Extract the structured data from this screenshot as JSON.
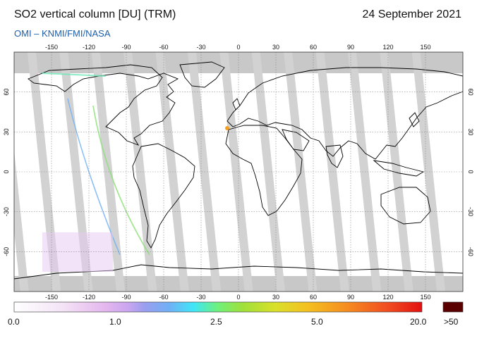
{
  "header": {
    "title": "SO2 vertical column [DU] (TRM)",
    "date": "24 September 2021",
    "source": "OMI  –  KNMI/FMI/NASA"
  },
  "map": {
    "lon_ticks": [
      "-150",
      "-120",
      "-90",
      "-60",
      "-30",
      "0",
      "30",
      "60",
      "90",
      "120",
      "150"
    ],
    "lat_ticks_left": [
      "60",
      "30",
      "0",
      "-30",
      "-60"
    ],
    "lat_ticks_right": [
      "60",
      "30",
      "0",
      "-30",
      "-60"
    ],
    "colors": {
      "ocean": "#ffffff",
      "no_data": "#c8c8c8",
      "swath_gap": "#d2d2d2",
      "land_gap": "#9a9a9a",
      "coastline": "#000000",
      "grid": "#888888"
    }
  },
  "colorbar": {
    "labels": [
      "0.0",
      "1.0",
      "2.5",
      "5.0",
      "20.0"
    ],
    "over_label": ">50",
    "over_color": "#5a0000"
  }
}
